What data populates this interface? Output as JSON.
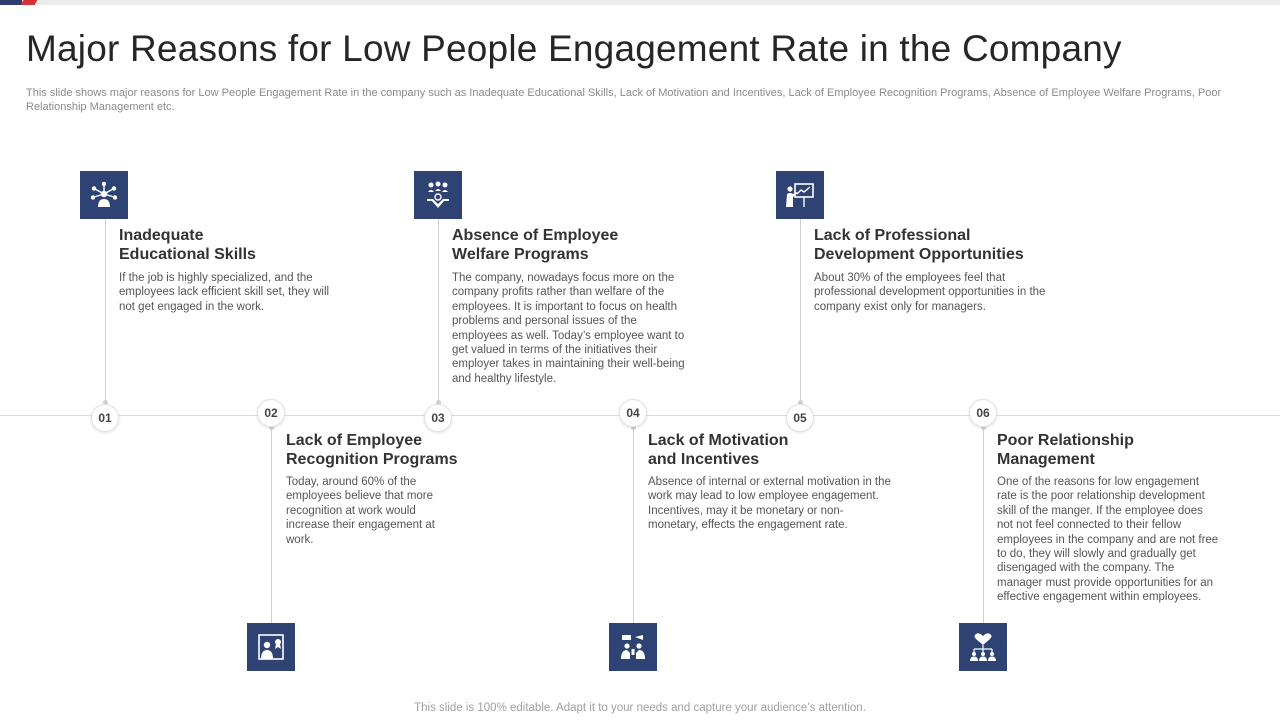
{
  "title": "Major Reasons for Low People Engagement Rate in the Company",
  "subtitle": "This slide shows major reasons for Low People Engagement Rate in the company such as Inadequate Educational Skills, Lack of Motivation  and Incentives, Lack of Employee Recognition Programs, Absence of Employee Welfare Programs, Poor Relationship Management etc.",
  "colors": {
    "accent": "#2f4274",
    "brand_red": "#d63031"
  },
  "items": [
    {
      "number": "01",
      "icon": "network-people-icon",
      "heading_l1": "Inadequate",
      "heading_l2": "Educational Skills",
      "description": "If the job is highly specialized, and the employees lack efficient skill set, they will not get engaged in the work."
    },
    {
      "number": "02",
      "icon": "recognition-badge-icon",
      "heading_l1": "Lack of Employee",
      "heading_l2": "Recognition Programs",
      "description": "Today,  around 60% of the employees believe that more recognition at work would increase their engagement at work."
    },
    {
      "number": "03",
      "icon": "welfare-hand-icon",
      "heading_l1": "Absence of Employee",
      "heading_l2": "Welfare Programs",
      "description": "The company, nowadays focus more on the company profits rather than welfare of the employees. It is important to focus on health problems and personal issues of the employees as well. Today’s employee want to get valued in terms of the initiatives their employer takes in maintaining their well-being and healthy lifestyle."
    },
    {
      "number": "04",
      "icon": "motivation-team-icon",
      "heading_l1": "Lack of Motivation",
      "heading_l2": "and Incentives",
      "description": "Absence of internal or external motivation in the work may lead to low employee engagement. Incentives, may it be monetary or non-monetary, effects the engagement rate."
    },
    {
      "number": "05",
      "icon": "presentation-board-icon",
      "heading_l1": "Lack of Professional",
      "heading_l2": "Development Opportunities",
      "description": "About 30% of the employees feel that professional development opportunities in the company exist only for managers."
    },
    {
      "number": "06",
      "icon": "relationship-heart-icon",
      "heading_l1": "Poor Relationship",
      "heading_l2": "Management",
      "description": "One of the reasons for low engagement rate is the poor relationship development skill of the manger. If the employee does not not feel connected to their fellow employees in the company and are not free to do, they will slowly and gradually get disengaged with the company. The manager must provide opportunities for an effective engagement within employees."
    }
  ],
  "footer": "This slide is 100% editable. Adapt it to your needs and capture your audience’s attention."
}
